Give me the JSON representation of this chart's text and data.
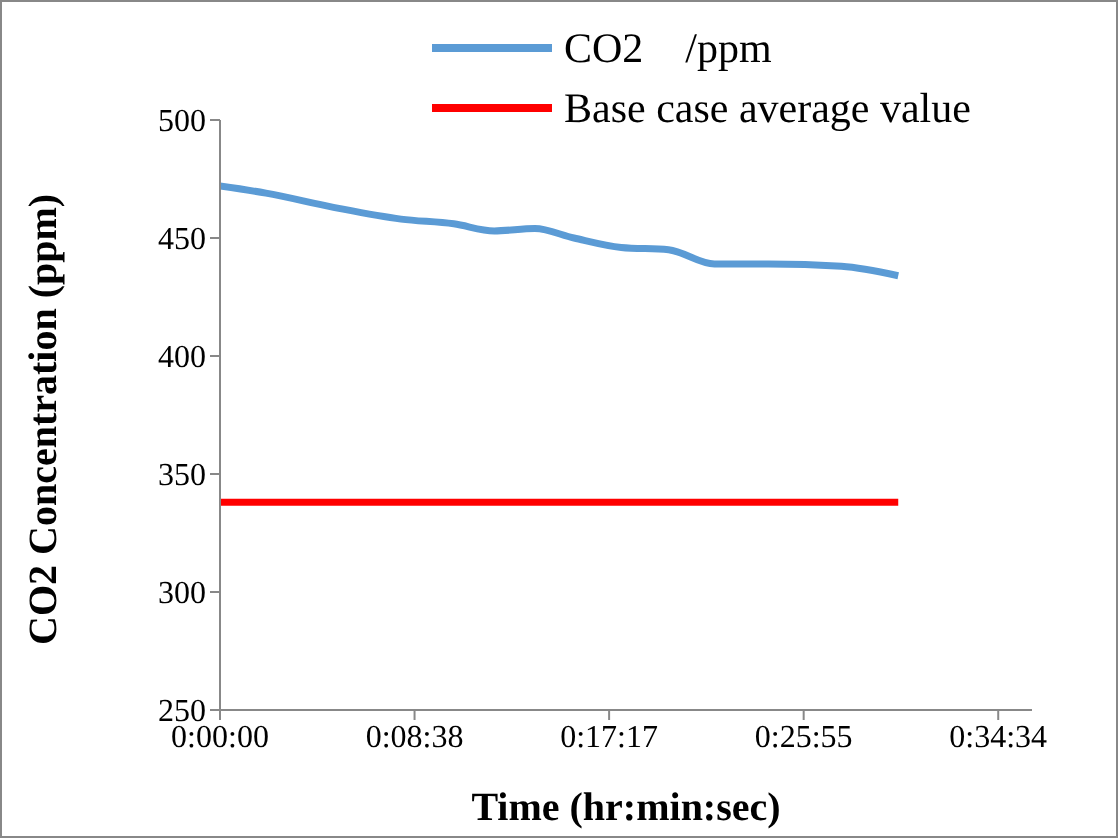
{
  "chart_data": {
    "type": "line",
    "xlabel": "Time (hr:min:sec)",
    "ylabel": "CO2 Concentration (ppm)",
    "series": [
      {
        "name": "CO2    /ppm",
        "color": "#5b9bd5",
        "x": [
          0,
          0.034,
          0.084,
          0.134,
          0.173,
          0.203,
          0.233,
          0.262,
          0.297,
          0.332,
          0.366,
          0.406,
          0.46,
          0.502
        ],
        "values": [
          472,
          469,
          463,
          458,
          456,
          453,
          454,
          450,
          446,
          445,
          439,
          439,
          438,
          434
        ]
      },
      {
        "name": "Base case average value",
        "color": "#ff0000",
        "x": [
          0,
          0.502
        ],
        "values": [
          338,
          338
        ]
      }
    ],
    "xlim": [
      0,
      0.601
    ],
    "xticks": [
      {
        "value": 0,
        "label": "0:00:00"
      },
      {
        "value": 0.144,
        "label": "0:08:38"
      },
      {
        "value": 0.288,
        "label": "0:17:17"
      },
      {
        "value": 0.432,
        "label": "0:25:55"
      },
      {
        "value": 0.576,
        "label": "0:34:34"
      }
    ],
    "ylim": [
      250,
      500
    ],
    "yticks": [
      250,
      300,
      350,
      400,
      450,
      500
    ],
    "grid": false,
    "legend": "top right",
    "marker": "none",
    "line_style": "solid"
  }
}
